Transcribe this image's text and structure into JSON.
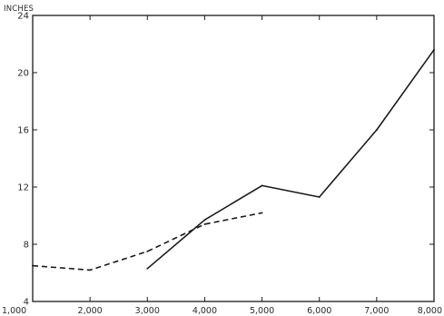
{
  "chart_data": {
    "type": "line",
    "title": "",
    "ylabel": "INCHES",
    "xlabel": "",
    "xlim": [
      1000,
      8000
    ],
    "ylim": [
      4,
      24
    ],
    "x_ticks": [
      1000,
      2000,
      3000,
      4000,
      5000,
      6000,
      7000,
      8000
    ],
    "x_tick_labels": [
      "1,000",
      "2,000",
      "3,000",
      "4,000",
      "5,000",
      "6,000",
      "7,000",
      "8,000"
    ],
    "y_ticks": [
      4,
      8,
      12,
      16,
      20,
      24
    ],
    "y_tick_labels": [
      "4",
      "8",
      "12",
      "16",
      "20",
      "24"
    ],
    "grid": false,
    "series": [
      {
        "style": "solid",
        "color": "#1a1a1a",
        "x": [
          3000,
          4000,
          5000,
          6000,
          7000,
          8000
        ],
        "y": [
          6.3,
          9.7,
          12.1,
          11.3,
          16.0,
          21.6
        ]
      },
      {
        "style": "dashed",
        "color": "#1a1a1a",
        "x": [
          1000,
          2000,
          3000,
          4000,
          5000
        ],
        "y": [
          6.5,
          6.2,
          7.5,
          9.4,
          10.2
        ]
      }
    ]
  }
}
